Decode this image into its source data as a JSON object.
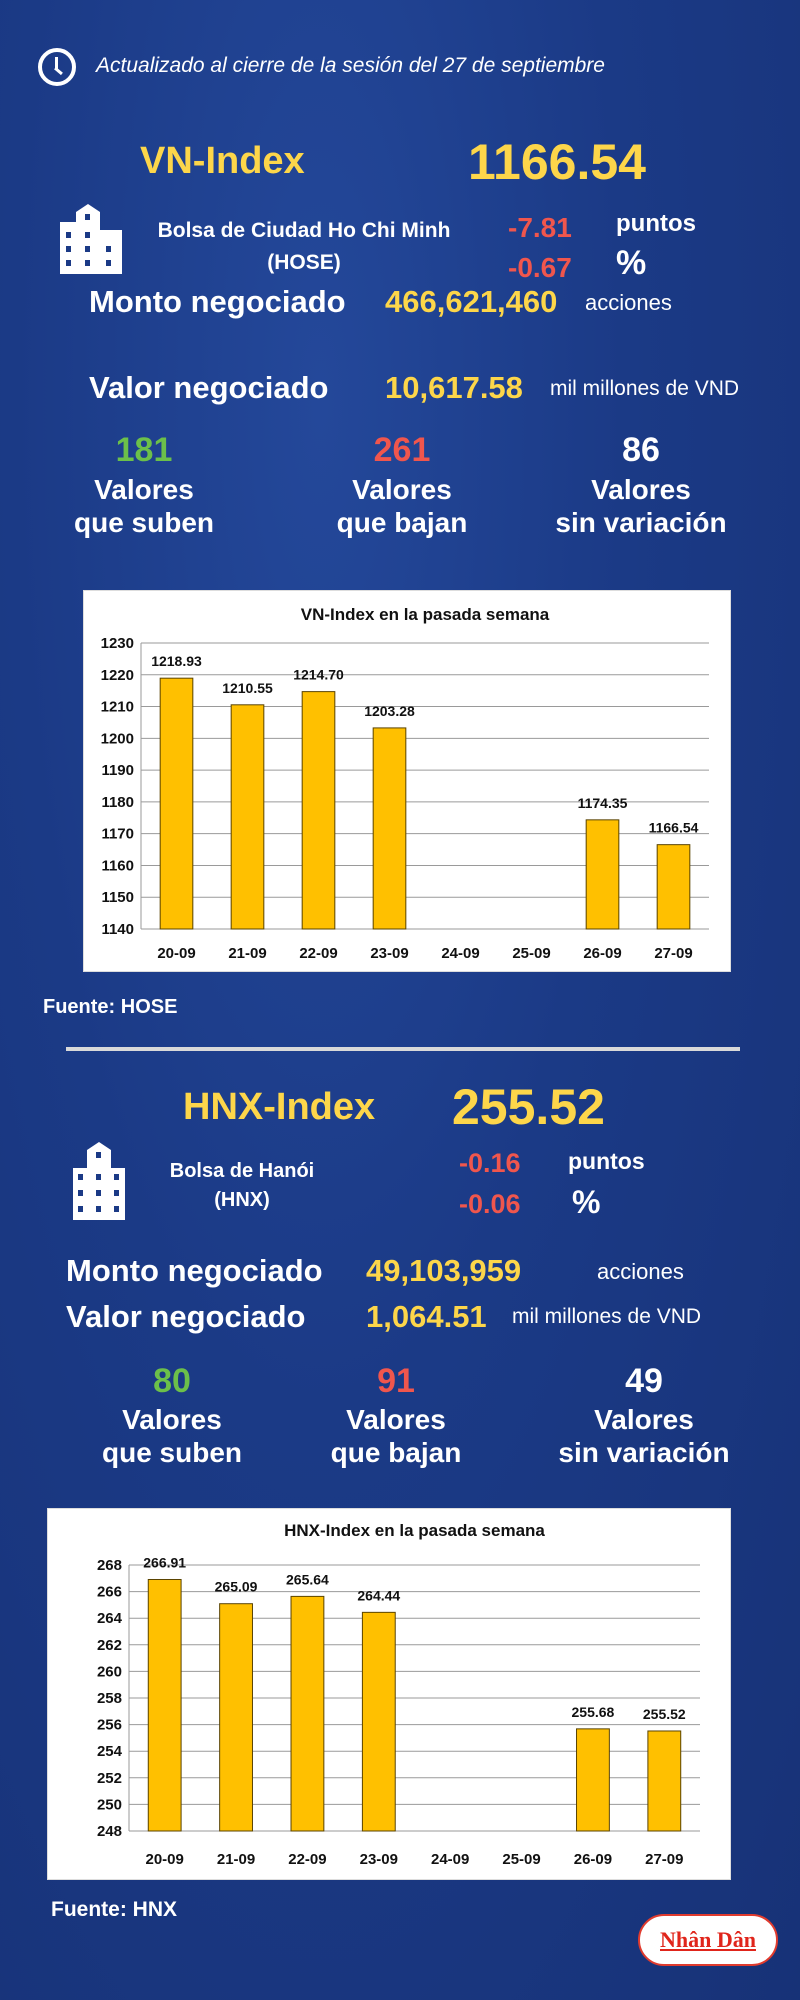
{
  "header": {
    "icon": "clock-icon",
    "updated": "Actualizado al cierre de la sesión del 27 de septiembre"
  },
  "colors": {
    "background": "#1b3a86",
    "highlight": "#fdd64a",
    "up": "#6cc04a",
    "down": "#f0564d",
    "bar": "#ffc000"
  },
  "vn": {
    "name": "VN-Index",
    "value": "1166.54",
    "exchange_line1": "Bolsa de Ciudad Ho Chi Minh",
    "exchange_line2": "(HOSE)",
    "change_points": "-7.81",
    "points_label": "puntos",
    "change_pct": "-0.67",
    "pct_label": "%",
    "volume_label": "Monto negociado",
    "volume": "466,621,460",
    "volume_unit": "acciones",
    "value_label": "Valor negociado",
    "traded_value": "10,617.58",
    "value_unit": "mil millones de VND",
    "up": {
      "count": "181",
      "l1": "Valores",
      "l2": "que suben"
    },
    "down": {
      "count": "261",
      "l1": "Valores",
      "l2": "que bajan"
    },
    "flat": {
      "count": "86",
      "l1": "Valores",
      "l2": "sin variación"
    },
    "source": "Fuente: HOSE"
  },
  "hnx": {
    "name": "HNX-Index",
    "value": "255.52",
    "exchange_line1": "Bolsa de Hanói",
    "exchange_line2": "(HNX)",
    "change_points": "-0.16",
    "points_label": "puntos",
    "change_pct": "-0.06",
    "pct_label": "%",
    "volume_label": "Monto negociado",
    "volume": "49,103,959",
    "volume_unit": "acciones",
    "value_label": "Valor negociado",
    "traded_value": "1,064.51",
    "value_unit": "mil millones de VND",
    "up": {
      "count": "80",
      "l1": "Valores",
      "l2": "que suben"
    },
    "down": {
      "count": "91",
      "l1": "Valores",
      "l2": "que bajan"
    },
    "flat": {
      "count": "49",
      "l1": "Valores",
      "l2": "sin variación"
    },
    "source": "Fuente:  HNX"
  },
  "logo": "Nhân Dân",
  "chart_data": [
    {
      "type": "bar",
      "title": "VN-Index en la pasada semana",
      "categories": [
        "20-09",
        "21-09",
        "22-09",
        "23-09",
        "24-09",
        "25-09",
        "26-09",
        "27-09"
      ],
      "values": [
        1218.93,
        1210.55,
        1214.7,
        1203.28,
        null,
        null,
        1174.35,
        1166.54
      ],
      "labels": [
        "1218.93",
        "1210.55",
        "1214.70",
        "1203.28",
        "",
        "",
        "1174.35",
        "1166.54"
      ],
      "ylim": [
        1140,
        1230
      ],
      "yticks": [
        1140,
        1150,
        1160,
        1170,
        1180,
        1190,
        1200,
        1210,
        1220,
        1230
      ],
      "grid": true,
      "xlabel": "",
      "ylabel": ""
    },
    {
      "type": "bar",
      "title": "HNX-Index en la pasada semana",
      "categories": [
        "20-09",
        "21-09",
        "22-09",
        "23-09",
        "24-09",
        "25-09",
        "26-09",
        "27-09"
      ],
      "values": [
        266.91,
        265.09,
        265.64,
        264.44,
        null,
        null,
        255.68,
        255.52
      ],
      "labels": [
        "266.91",
        "265.09",
        "265.64",
        "264.44",
        "",
        "",
        "255.68",
        "255.52"
      ],
      "ylim": [
        248,
        268
      ],
      "yticks": [
        248,
        250,
        252,
        254,
        256,
        258,
        260,
        262,
        264,
        266,
        268
      ],
      "grid": true,
      "xlabel": "",
      "ylabel": ""
    }
  ]
}
